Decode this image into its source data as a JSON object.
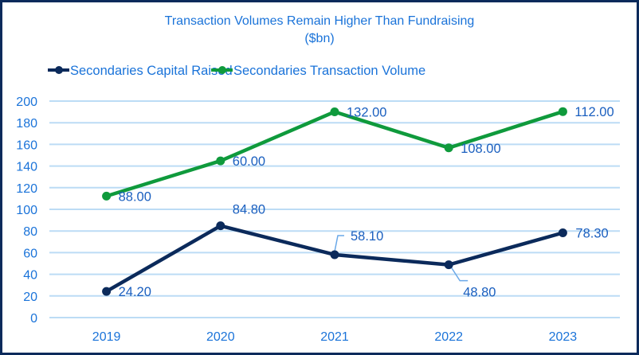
{
  "chart_data": {
    "type": "line",
    "stacked": true,
    "title": "Transaction Volumes Remain Higher Than Fundraising",
    "subtitle": "($bn)",
    "xlabel": "",
    "ylabel": "",
    "categories": [
      "2019",
      "2020",
      "2021",
      "2022",
      "2023"
    ],
    "ylim": [
      0,
      200
    ],
    "yticks": [
      0,
      20,
      40,
      60,
      80,
      100,
      120,
      140,
      160,
      180,
      200
    ],
    "grid": true,
    "legend_position": "top",
    "series": [
      {
        "name": "Secondaries Capital Raised",
        "color": "#0b2a5b",
        "values": [
          24.2,
          84.8,
          58.1,
          48.8,
          78.3
        ],
        "labels": [
          "24.20",
          "84.80",
          "58.10",
          "48.80",
          "78.30"
        ]
      },
      {
        "name": "Secondaries Transaction Volume",
        "color": "#0f9a3c",
        "values": [
          88.0,
          60.0,
          132.0,
          108.0,
          112.0
        ],
        "labels": [
          "88.00",
          "60.00",
          "132.00",
          "108.00",
          "112.00"
        ]
      }
    ],
    "colors": {
      "text": "#1a73d9",
      "grid": "#bcdcf5",
      "border": "#0b2a5b",
      "leader": "#6aa8e8"
    }
  }
}
